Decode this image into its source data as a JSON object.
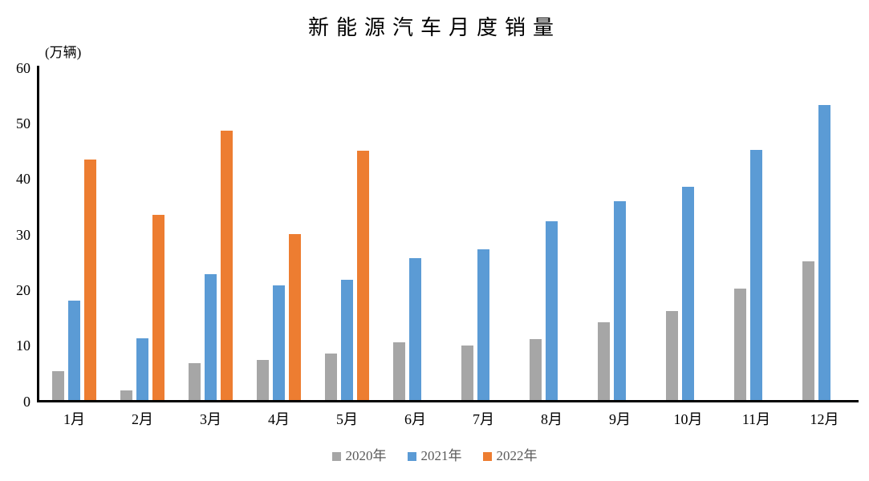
{
  "chart_data": {
    "type": "bar",
    "title": "新能源汽车月度销量",
    "unit_label": "(万辆)",
    "xlabel": "",
    "ylabel": "",
    "categories": [
      "1月",
      "2月",
      "3月",
      "4月",
      "5月",
      "6月",
      "7月",
      "8月",
      "9月",
      "10月",
      "11月",
      "12月"
    ],
    "series": [
      {
        "name": "2020年",
        "color": "#A6A6A6",
        "values": [
          5.2,
          1.7,
          6.6,
          7.2,
          8.3,
          10.4,
          9.8,
          10.9,
          14.0,
          16.0,
          20.0,
          24.9
        ]
      },
      {
        "name": "2021年",
        "color": "#5B9BD5",
        "values": [
          17.9,
          11.1,
          22.6,
          20.6,
          21.7,
          25.6,
          27.1,
          32.1,
          35.7,
          38.3,
          45.0,
          53.1
        ]
      },
      {
        "name": "2022年",
        "color": "#ED7D31",
        "values": [
          43.3,
          33.3,
          48.5,
          29.9,
          44.8,
          null,
          null,
          null,
          null,
          null,
          null,
          null
        ]
      }
    ],
    "ylim": [
      0,
      60
    ],
    "yticks": [
      0,
      10,
      20,
      30,
      40,
      50,
      60
    ],
    "grid": false,
    "legend_position": "bottom",
    "axis_color": "#000000",
    "legend_text_color": "#595959",
    "background_color": "#FFFFFF"
  }
}
